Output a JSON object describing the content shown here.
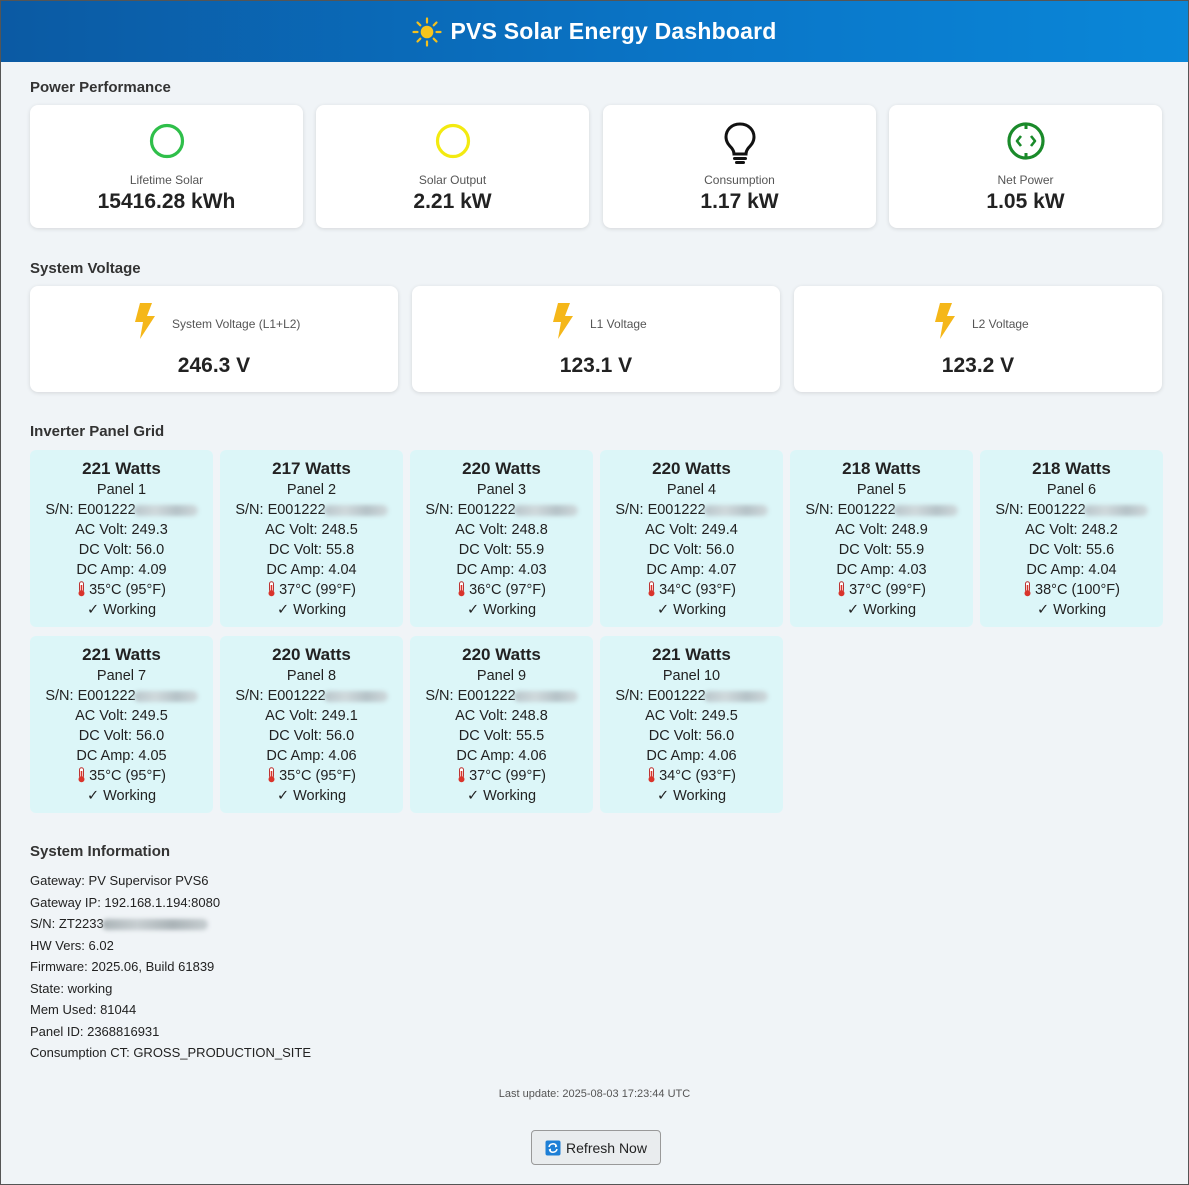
{
  "header": {
    "title": "PVS Solar Energy Dashboard",
    "icon": "sun-icon"
  },
  "sections": {
    "power": "Power Performance",
    "voltage": "System Voltage",
    "grid": "Inverter Panel Grid",
    "info": "System Information"
  },
  "power": [
    {
      "label": "Lifetime Solar",
      "value": "15416.28 kWh",
      "icon": "circle-green-icon"
    },
    {
      "label": "Solar Output",
      "value": "2.21 kW",
      "icon": "circle-yellow-icon"
    },
    {
      "label": "Consumption",
      "value": "1.17 kW",
      "icon": "lightbulb-icon"
    },
    {
      "label": "Net Power",
      "value": "1.05 kW",
      "icon": "net-arrows-icon"
    }
  ],
  "voltage": [
    {
      "label": "System Voltage (L1+L2)",
      "value": "246.3 V"
    },
    {
      "label": "L1 Voltage",
      "value": "123.1 V"
    },
    {
      "label": "L2 Voltage",
      "value": "123.2 V"
    }
  ],
  "panels": [
    {
      "watts": "221 Watts",
      "name": "Panel 1",
      "sn": "S/N: E001222",
      "ac": "AC Volt: 249.3",
      "dc": "DC Volt: 56.0",
      "amp": "DC Amp: 4.09",
      "temp": "35°C (95°F)",
      "status": "✓ Working"
    },
    {
      "watts": "217 Watts",
      "name": "Panel 2",
      "sn": "S/N: E001222",
      "ac": "AC Volt: 248.5",
      "dc": "DC Volt: 55.8",
      "amp": "DC Amp: 4.04",
      "temp": "37°C (99°F)",
      "status": "✓ Working"
    },
    {
      "watts": "220 Watts",
      "name": "Panel 3",
      "sn": "S/N: E001222",
      "ac": "AC Volt: 248.8",
      "dc": "DC Volt: 55.9",
      "amp": "DC Amp: 4.03",
      "temp": "36°C (97°F)",
      "status": "✓ Working"
    },
    {
      "watts": "220 Watts",
      "name": "Panel 4",
      "sn": "S/N: E001222",
      "ac": "AC Volt: 249.4",
      "dc": "DC Volt: 56.0",
      "amp": "DC Amp: 4.07",
      "temp": "34°C (93°F)",
      "status": "✓ Working"
    },
    {
      "watts": "218 Watts",
      "name": "Panel 5",
      "sn": "S/N: E001222",
      "ac": "AC Volt: 248.9",
      "dc": "DC Volt: 55.9",
      "amp": "DC Amp: 4.03",
      "temp": "37°C (99°F)",
      "status": "✓ Working"
    },
    {
      "watts": "218 Watts",
      "name": "Panel 6",
      "sn": "S/N: E001222",
      "ac": "AC Volt: 248.2",
      "dc": "DC Volt: 55.6",
      "amp": "DC Amp: 4.04",
      "temp": "38°C (100°F)",
      "status": "✓ Working"
    },
    {
      "watts": "221 Watts",
      "name": "Panel 7",
      "sn": "S/N: E001222",
      "ac": "AC Volt: 249.5",
      "dc": "DC Volt: 56.0",
      "amp": "DC Amp: 4.05",
      "temp": "35°C (95°F)",
      "status": "✓ Working"
    },
    {
      "watts": "220 Watts",
      "name": "Panel 8",
      "sn": "S/N: E001222",
      "ac": "AC Volt: 249.1",
      "dc": "DC Volt: 56.0",
      "amp": "DC Amp: 4.06",
      "temp": "35°C (95°F)",
      "status": "✓ Working"
    },
    {
      "watts": "220 Watts",
      "name": "Panel 9",
      "sn": "S/N: E001222",
      "ac": "AC Volt: 248.8",
      "dc": "DC Volt: 55.5",
      "amp": "DC Amp: 4.06",
      "temp": "37°C (99°F)",
      "status": "✓ Working"
    },
    {
      "watts": "221 Watts",
      "name": "Panel 10",
      "sn": "S/N: E001222",
      "ac": "AC Volt: 249.5",
      "dc": "DC Volt: 56.0",
      "amp": "DC Amp: 4.06",
      "temp": "34°C (93°F)",
      "status": "✓ Working"
    }
  ],
  "info": {
    "gateway": "Gateway: PV Supervisor PVS6",
    "gateway_ip": "Gateway IP: 192.168.1.194:8080",
    "sn": "S/N: ZT2233",
    "hw": "HW Vers: 6.02",
    "firmware": "Firmware: 2025.06, Build 61839",
    "state": "State: working",
    "mem": "Mem Used: 81044",
    "panel_id": "Panel ID: 2368816931",
    "ct": "Consumption CT: GROSS_PRODUCTION_SITE"
  },
  "last_update": "Last update: 2025-08-03 17:23:44 UTC",
  "refresh_label": "Refresh Now",
  "colors": {
    "header_start": "#0b5aa3",
    "header_end": "#0a87d8",
    "panel_bg": "#dcf6f8",
    "bolt": "#f5b719"
  }
}
